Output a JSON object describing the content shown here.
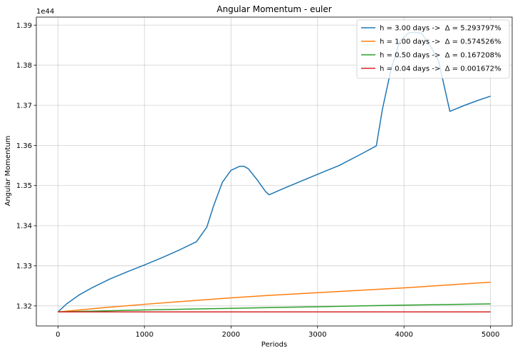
{
  "chart_data": {
    "type": "line",
    "title": "Angular Momentum - euler",
    "xlabel": "Periods",
    "ylabel": "Angular Momentum",
    "offset_label": "1e44",
    "xlim": [
      -250,
      5250
    ],
    "ylim": [
      1.315,
      1.392
    ],
    "xticks": [
      0,
      1000,
      2000,
      3000,
      4000,
      5000
    ],
    "xtick_labels": [
      "0",
      "1000",
      "2000",
      "3000",
      "4000",
      "5000"
    ],
    "yticks": [
      1.32,
      1.33,
      1.34,
      1.35,
      1.36,
      1.37,
      1.38,
      1.39
    ],
    "ytick_labels": [
      "1.32",
      "1.33",
      "1.34",
      "1.35",
      "1.36",
      "1.37",
      "1.38",
      "1.39"
    ],
    "grid": true,
    "legend_position": "top-right",
    "series": [
      {
        "name": "h = 3.00 days ->  Δ = 5.293797%",
        "color": "#1f77b4",
        "x": [
          0,
          100,
          250,
          400,
          600,
          800,
          1000,
          1200,
          1400,
          1600,
          1720,
          1800,
          1900,
          2000,
          2100,
          2150,
          2200,
          2300,
          2400,
          2440,
          2600,
          2800,
          3000,
          3250,
          3500,
          3680,
          3750,
          3850,
          3950,
          4050,
          4100,
          4200,
          4300,
          4400,
          4530,
          4700,
          4850,
          5000
        ],
        "y": [
          1.3185,
          1.3205,
          1.3228,
          1.3246,
          1.3267,
          1.3285,
          1.3302,
          1.332,
          1.3339,
          1.336,
          1.3396,
          1.345,
          1.3508,
          1.3538,
          1.3548,
          1.3548,
          1.3542,
          1.3515,
          1.3485,
          1.3477,
          1.3492,
          1.351,
          1.3528,
          1.355,
          1.3578,
          1.3599,
          1.369,
          1.379,
          1.386,
          1.388,
          1.3882,
          1.388,
          1.385,
          1.381,
          1.3685,
          1.37,
          1.3712,
          1.3723
        ]
      },
      {
        "name": "h = 1.00 days ->  Δ = 0.574526%",
        "color": "#ff7f0e",
        "x": [
          0,
          500,
          1000,
          1500,
          2000,
          2500,
          3000,
          3500,
          4000,
          4500,
          5000
        ],
        "y": [
          1.3185,
          1.3195,
          1.3204,
          1.3212,
          1.322,
          1.3227,
          1.3233,
          1.3239,
          1.3245,
          1.3252,
          1.3259
        ]
      },
      {
        "name": "h = 0.50 days ->  Δ = 0.167208%",
        "color": "#2ca02c",
        "x": [
          0,
          1000,
          2000,
          3000,
          4000,
          5000
        ],
        "y": [
          1.3185,
          1.319,
          1.3194,
          1.3198,
          1.3202,
          1.3205
        ]
      },
      {
        "name": "h = 0.04 days ->  Δ = 0.001672%",
        "color": "#d62728",
        "x": [
          0,
          5000
        ],
        "y": [
          1.3185,
          1.3185
        ]
      }
    ]
  }
}
